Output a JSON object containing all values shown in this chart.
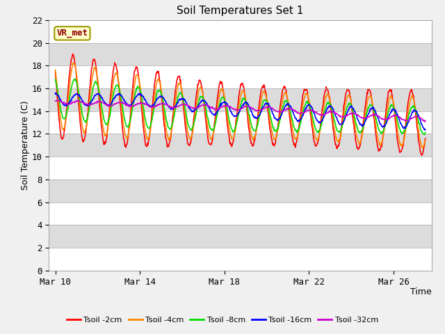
{
  "title": "Soil Temperatures Set 1",
  "xlabel": "Time",
  "ylabel": "Soil Temperature (C)",
  "ylim": [
    0,
    22
  ],
  "yticks": [
    0,
    2,
    4,
    6,
    8,
    10,
    12,
    14,
    16,
    18,
    20,
    22
  ],
  "xtick_labels": [
    "Mar 10",
    "Mar 14",
    "Mar 18",
    "Mar 22",
    "Mar 26"
  ],
  "xtick_positions": [
    0,
    4,
    8,
    12,
    16
  ],
  "annotation_text": "VR_met",
  "legend_labels": [
    "Tsoil -2cm",
    "Tsoil -4cm",
    "Tsoil -8cm",
    "Tsoil -16cm",
    "Tsoil -32cm"
  ],
  "line_colors": [
    "#ff0000",
    "#ff8800",
    "#00dd00",
    "#0000ff",
    "#cc00cc"
  ],
  "line_widths": [
    1.2,
    1.2,
    1.2,
    1.2,
    1.2
  ],
  "fig_bg": "#f0f0f0",
  "plot_bg_light": "#ffffff",
  "plot_bg_dark": "#dcdcdc"
}
